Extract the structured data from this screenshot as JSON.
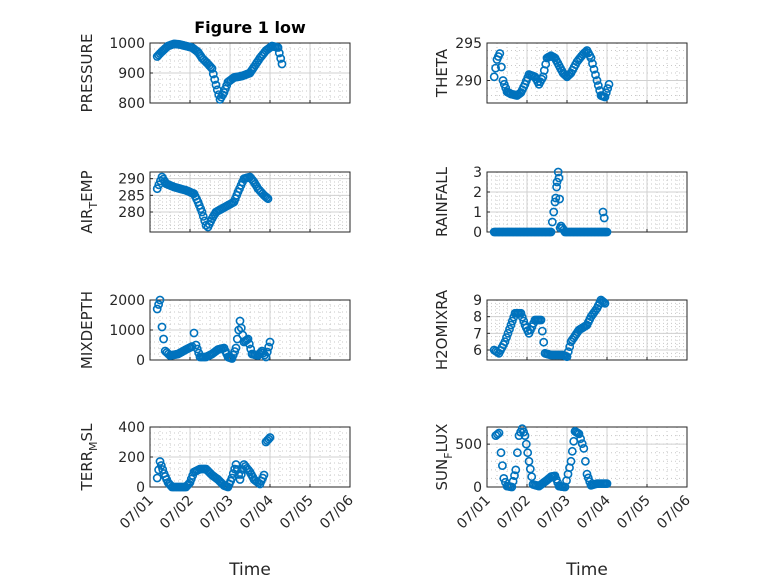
{
  "figure": {
    "title": "Figure 1 low",
    "xlabel": "Time",
    "x_ticks": [
      "07/01",
      "07/02",
      "07/03",
      "07/04",
      "07/05",
      "07/06"
    ],
    "marker_color": "#0072bd"
  },
  "chart_data": [
    {
      "type": "scatter",
      "title": "Figure 1 low",
      "ylabel_parts": [
        "PRESSURE"
      ],
      "xlim": [
        0,
        5
      ],
      "ylim": [
        800,
        1000
      ],
      "yticks": [
        800,
        900,
        1000
      ],
      "xlabel": "",
      "grid": true,
      "x_units": "days since 07/01",
      "anchors": [
        [
          0.18,
          955
        ],
        [
          0.25,
          965
        ],
        [
          0.35,
          978
        ],
        [
          0.45,
          990
        ],
        [
          0.6,
          997
        ],
        [
          0.75,
          995
        ],
        [
          0.9,
          990
        ],
        [
          1.05,
          985
        ],
        [
          1.2,
          970
        ],
        [
          1.3,
          950
        ],
        [
          1.45,
          930
        ],
        [
          1.55,
          915
        ],
        [
          1.65,
          860
        ],
        [
          1.75,
          812
        ],
        [
          1.85,
          835
        ],
        [
          1.95,
          870
        ],
        [
          2.1,
          885
        ],
        [
          2.3,
          890
        ],
        [
          2.5,
          900
        ],
        [
          2.6,
          920
        ],
        [
          2.75,
          950
        ],
        [
          2.9,
          975
        ],
        [
          3.05,
          990
        ],
        [
          3.2,
          985
        ],
        [
          3.3,
          930
        ]
      ]
    },
    {
      "type": "scatter",
      "ylabel_parts": [
        "THETA"
      ],
      "xlim": [
        0,
        5
      ],
      "ylim": [
        287,
        295
      ],
      "yticks": [
        290,
        295
      ],
      "xlabel": "",
      "grid": true,
      "anchors": [
        [
          0.18,
          290.5
        ],
        [
          0.25,
          292.8
        ],
        [
          0.32,
          293.6
        ],
        [
          0.4,
          290
        ],
        [
          0.5,
          288.5
        ],
        [
          0.6,
          288.2
        ],
        [
          0.75,
          288
        ],
        [
          0.85,
          288.4
        ],
        [
          0.95,
          289.5
        ],
        [
          1.05,
          290.8
        ],
        [
          1.2,
          290.5
        ],
        [
          1.3,
          289.5
        ],
        [
          1.4,
          290.5
        ],
        [
          1.5,
          293
        ],
        [
          1.6,
          293.3
        ],
        [
          1.7,
          293
        ],
        [
          1.8,
          292
        ],
        [
          1.9,
          291
        ],
        [
          2.0,
          290.5
        ],
        [
          2.1,
          291
        ],
        [
          2.25,
          292.5
        ],
        [
          2.4,
          293.5
        ],
        [
          2.5,
          294
        ],
        [
          2.6,
          293
        ],
        [
          2.75,
          290
        ],
        [
          2.85,
          288
        ],
        [
          2.95,
          287.8
        ],
        [
          3.05,
          289.5
        ]
      ]
    },
    {
      "type": "scatter",
      "ylabel_parts": [
        "AIR",
        "T",
        "EMP"
      ],
      "xlim": [
        0,
        5
      ],
      "ylim": [
        274,
        292
      ],
      "yticks": [
        280,
        285,
        290
      ],
      "xlabel": "",
      "grid": true,
      "anchors": [
        [
          0.18,
          287
        ],
        [
          0.3,
          290.5
        ],
        [
          0.4,
          288.5
        ],
        [
          0.5,
          288
        ],
        [
          0.6,
          287.5
        ],
        [
          0.75,
          287
        ],
        [
          0.9,
          286.5
        ],
        [
          1.0,
          286
        ],
        [
          1.1,
          285.5
        ],
        [
          1.2,
          283
        ],
        [
          1.3,
          280
        ],
        [
          1.4,
          276
        ],
        [
          1.45,
          275.5
        ],
        [
          1.55,
          278
        ],
        [
          1.65,
          280
        ],
        [
          1.8,
          281
        ],
        [
          1.95,
          282
        ],
        [
          2.1,
          283
        ],
        [
          2.2,
          286
        ],
        [
          2.35,
          290
        ],
        [
          2.5,
          290.5
        ],
        [
          2.6,
          289
        ],
        [
          2.7,
          287
        ],
        [
          2.85,
          285
        ],
        [
          2.95,
          284
        ]
      ]
    },
    {
      "type": "scatter",
      "ylabel_parts": [
        "RAINFALL"
      ],
      "xlim": [
        0,
        5
      ],
      "ylim": [
        0,
        3
      ],
      "yticks": [
        0,
        1,
        2,
        3
      ],
      "xlabel": "",
      "grid": true,
      "anchors": [
        [
          0.18,
          0
        ],
        [
          1.6,
          0
        ],
        [
          1.7,
          1.5
        ],
        [
          1.78,
          3.0
        ],
        [
          1.85,
          0.3
        ],
        [
          1.95,
          0
        ],
        [
          3.0,
          0
        ]
      ],
      "extra_points": [
        [
          1.72,
          1.7
        ],
        [
          1.75,
          2.5
        ],
        [
          1.8,
          2.7
        ],
        [
          1.83,
          0.2
        ],
        [
          2.9,
          1.0
        ],
        [
          2.93,
          0.7
        ]
      ]
    },
    {
      "type": "scatter",
      "ylabel_parts": [
        "MIXDEPTH"
      ],
      "xlim": [
        0,
        5
      ],
      "ylim": [
        0,
        2000
      ],
      "yticks": [
        0,
        1000,
        2000
      ],
      "xlabel": "",
      "grid": true,
      "anchors": [
        [
          0.18,
          1700
        ],
        [
          0.25,
          2000
        ],
        [
          0.3,
          1100
        ],
        [
          0.38,
          300
        ],
        [
          0.5,
          150
        ],
        [
          0.7,
          200
        ],
        [
          0.9,
          350
        ],
        [
          1.05,
          450
        ],
        [
          1.1,
          900
        ],
        [
          1.15,
          500
        ],
        [
          1.25,
          100
        ],
        [
          1.4,
          100
        ],
        [
          1.55,
          200
        ],
        [
          1.7,
          350
        ],
        [
          1.85,
          400
        ],
        [
          1.95,
          100
        ],
        [
          2.05,
          50
        ],
        [
          2.15,
          400
        ],
        [
          2.25,
          1300
        ],
        [
          2.35,
          600
        ],
        [
          2.45,
          700
        ],
        [
          2.55,
          200
        ],
        [
          2.7,
          150
        ],
        [
          2.8,
          300
        ],
        [
          2.9,
          100
        ],
        [
          3.0,
          600
        ]
      ]
    },
    {
      "type": "scatter",
      "ylabel_parts": [
        "H2OMIXRA"
      ],
      "xlim": [
        0,
        5
      ],
      "ylim": [
        5.4,
        9
      ],
      "yticks": [
        6,
        7,
        8,
        9
      ],
      "xlabel": "",
      "grid": true,
      "anchors": [
        [
          0.18,
          6
        ],
        [
          0.3,
          5.8
        ],
        [
          0.45,
          6.5
        ],
        [
          0.6,
          7.5
        ],
        [
          0.7,
          8.2
        ],
        [
          0.85,
          8.2
        ],
        [
          0.95,
          7.5
        ],
        [
          1.05,
          7
        ],
        [
          1.2,
          7.8
        ],
        [
          1.35,
          7.8
        ],
        [
          1.45,
          5.8
        ],
        [
          1.6,
          5.7
        ],
        [
          1.75,
          5.7
        ],
        [
          1.9,
          5.7
        ],
        [
          2.0,
          5.6
        ],
        [
          2.1,
          6.5
        ],
        [
          2.3,
          7.2
        ],
        [
          2.5,
          7.5
        ],
        [
          2.6,
          8
        ],
        [
          2.75,
          8.5
        ],
        [
          2.85,
          9
        ],
        [
          2.95,
          8.8
        ]
      ]
    },
    {
      "type": "scatter",
      "ylabel_parts": [
        "TERR",
        "M",
        "SL"
      ],
      "xlim": [
        0,
        5
      ],
      "ylim": [
        0,
        400
      ],
      "yticks": [
        0,
        200,
        400
      ],
      "xlabel": "Time",
      "grid": true,
      "anchors": [
        [
          0.18,
          60
        ],
        [
          0.25,
          170
        ],
        [
          0.35,
          90
        ],
        [
          0.45,
          30
        ],
        [
          0.55,
          0
        ],
        [
          0.7,
          0
        ],
        [
          0.9,
          0
        ],
        [
          1.0,
          30
        ],
        [
          1.1,
          100
        ],
        [
          1.25,
          120
        ],
        [
          1.4,
          120
        ],
        [
          1.55,
          80
        ],
        [
          1.7,
          50
        ],
        [
          1.85,
          10
        ],
        [
          1.95,
          0
        ],
        [
          2.05,
          60
        ],
        [
          2.15,
          150
        ],
        [
          2.25,
          50
        ],
        [
          2.35,
          150
        ],
        [
          2.5,
          100
        ],
        [
          2.6,
          50
        ],
        [
          2.75,
          20
        ],
        [
          2.85,
          80
        ],
        [
          2.9,
          300
        ],
        [
          3.0,
          330
        ]
      ]
    },
    {
      "type": "scatter",
      "ylabel_parts": [
        "SUN",
        "F",
        "LUX"
      ],
      "xlim": [
        0,
        5
      ],
      "ylim": [
        0,
        700
      ],
      "yticks": [
        0,
        500
      ],
      "xlabel": "Time",
      "grid": true,
      "anchors": [
        [
          0.22,
          600
        ],
        [
          0.3,
          630
        ],
        [
          0.35,
          400
        ],
        [
          0.42,
          100
        ],
        [
          0.5,
          10
        ],
        [
          0.62,
          0
        ],
        [
          0.72,
          200
        ],
        [
          0.8,
          600
        ],
        [
          0.88,
          680
        ],
        [
          0.95,
          600
        ],
        [
          1.05,
          300
        ],
        [
          1.15,
          30
        ],
        [
          1.3,
          10
        ],
        [
          1.5,
          80
        ],
        [
          1.6,
          120
        ],
        [
          1.7,
          130
        ],
        [
          1.8,
          10
        ],
        [
          1.95,
          0
        ],
        [
          2.1,
          300
        ],
        [
          2.2,
          650
        ],
        [
          2.3,
          620
        ],
        [
          2.42,
          450
        ],
        [
          2.5,
          150
        ],
        [
          2.6,
          20
        ],
        [
          2.75,
          40
        ],
        [
          2.9,
          40
        ],
        [
          3.0,
          40
        ]
      ]
    }
  ]
}
